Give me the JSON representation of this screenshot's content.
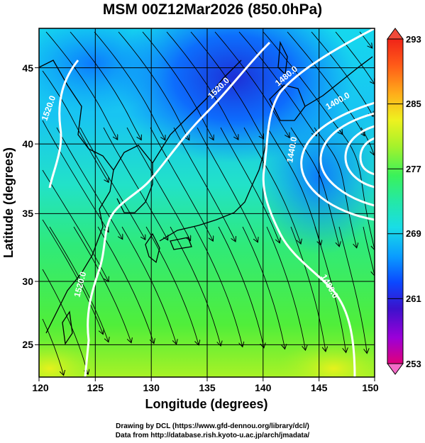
{
  "title": "MSM 00Z12Mar2026 (850.0hPa)",
  "x_axis": {
    "label": "Longitude (degrees)",
    "ticks": [
      "120",
      "125",
      "130",
      "135",
      "140",
      "145",
      "150"
    ],
    "range": [
      120,
      150
    ]
  },
  "y_axis": {
    "label": "Latitude  (degrees)",
    "ticks": [
      "25",
      "30",
      "35",
      "40",
      "45"
    ],
    "range": [
      22.5,
      47.7
    ]
  },
  "colorbar": {
    "tick_labels": [
      "293",
      "285",
      "277",
      "269",
      "261",
      "253"
    ],
    "range": [
      253,
      293
    ],
    "colors": [
      "#e0007a",
      "#9b00d8",
      "#3b12cc",
      "#0b48ff",
      "#0a9cff",
      "#19dde6",
      "#24e8a6",
      "#3af25a",
      "#a6f22b",
      "#eef21f",
      "#ffae1a",
      "#ff5a18",
      "#f02418"
    ]
  },
  "contour_labels": [
    "1520.0",
    "1520.0",
    "1520.0",
    "1480.0",
    "1440.0",
    "1400.0",
    "1480.0"
  ],
  "colors": {
    "contour": "#ffffff",
    "streamline": "#000000",
    "coast": "#000000"
  },
  "footer": {
    "line1": "Drawing by DCL (https://www.gfd-dennou.org/library/dcl/)",
    "line2": "Data from http://database.rish.kyoto-u.ac.jp/arch/jmadata/"
  }
}
